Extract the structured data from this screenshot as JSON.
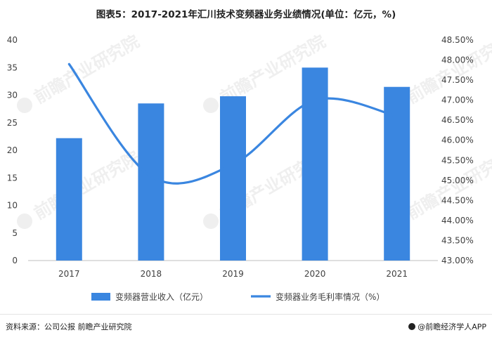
{
  "title": "图表5：2017-2021年汇川技术变频器业务业绩情况(单位：亿元，%)",
  "source": "资料来源：公司公报 前瞻产业研究院",
  "brand": "@前瞻经济学人APP",
  "watermark": "前瞻产业研究院",
  "chart_data": {
    "type": "bar",
    "categories": [
      "2017",
      "2018",
      "2019",
      "2020",
      "2021"
    ],
    "series": [
      {
        "name": "变频器营业收入（亿元）",
        "type": "bar",
        "axis": "left",
        "values": [
          22.2,
          28.5,
          29.8,
          35.0,
          31.5
        ],
        "color": "#3a86e0"
      },
      {
        "name": "变频器业务毛利率情况（%）",
        "type": "line",
        "axis": "right",
        "values": [
          47.9,
          45.1,
          45.4,
          47.0,
          46.6
        ],
        "color": "#3a86e0"
      }
    ],
    "left_axis": {
      "min": 0,
      "max": 40,
      "ticks": [
        "0",
        "5",
        "10",
        "15",
        "20",
        "25",
        "30",
        "35",
        "40"
      ]
    },
    "right_axis": {
      "min": 43,
      "max": 48.5,
      "ticks": [
        "43.00%",
        "43.50%",
        "44.00%",
        "44.50%",
        "45.00%",
        "45.50%",
        "46.00%",
        "46.50%",
        "47.00%",
        "47.50%",
        "48.00%",
        "48.50%"
      ]
    },
    "legend_position": "bottom",
    "grid": false
  }
}
